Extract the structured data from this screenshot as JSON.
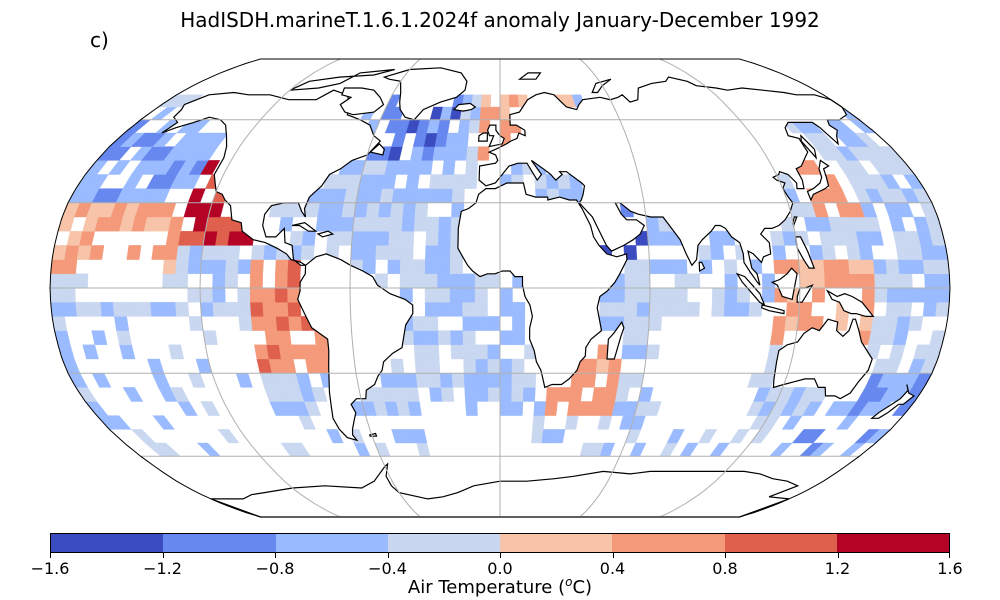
{
  "title": "HadISDH.marineT.1.6.1.2024f anomaly January-December 1992",
  "panel_label": "c)",
  "colorbar": {
    "label_main": "Air Temperature (",
    "label_sup": "o",
    "label_end": "C)",
    "ticks": [
      "−1.6",
      "−1.2",
      "−0.8",
      "−0.4",
      "0.0",
      "0.4",
      "0.8",
      "1.2",
      "1.6"
    ],
    "colors": [
      "#3b4cc0",
      "#6788ee",
      "#9abbff",
      "#c9d7f0",
      "#f7c4a9",
      "#f49a7b",
      "#de604d",
      "#b40426"
    ]
  },
  "map": {
    "projection": "Robinson",
    "frame_color": "#000000",
    "grid_color": "#b0b0b0",
    "coast_color": "#000000"
  }
}
